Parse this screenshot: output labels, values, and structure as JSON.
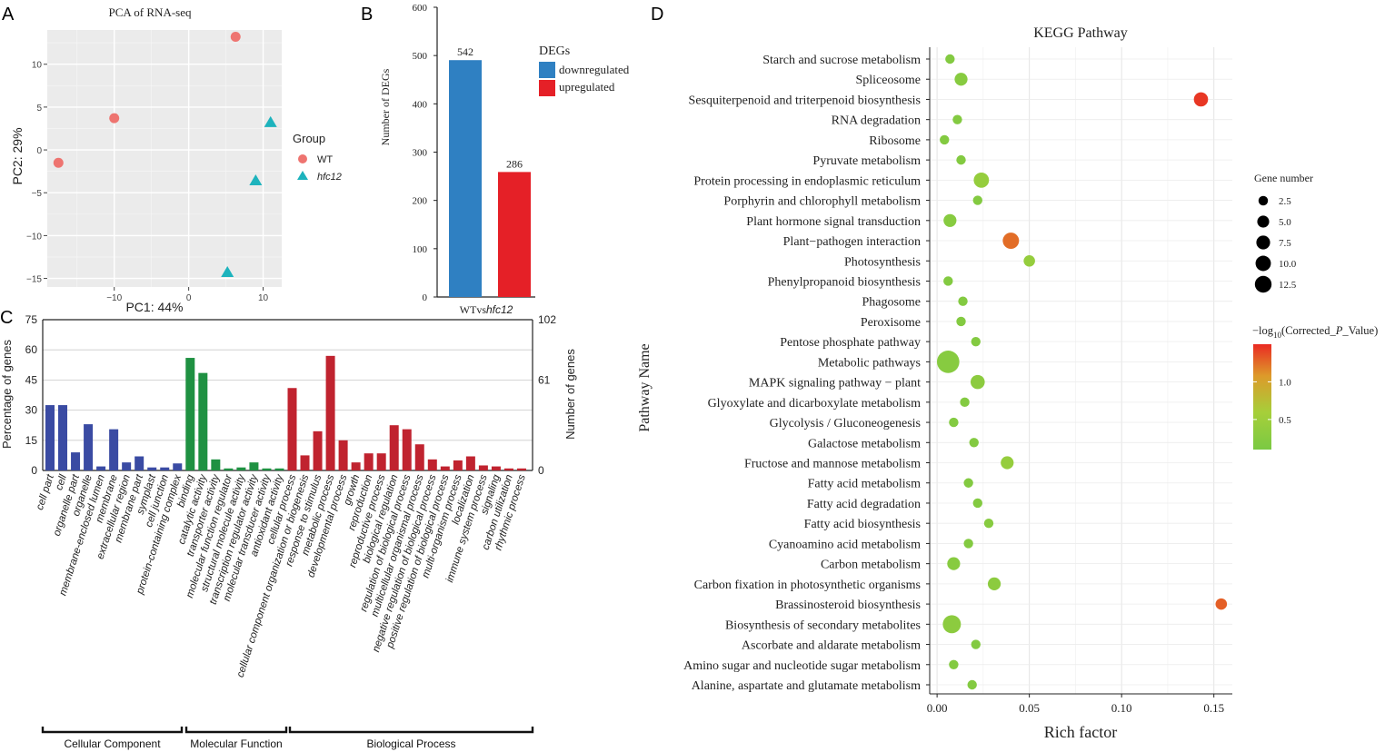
{
  "panels": {
    "a": "A",
    "b": "B",
    "c": "C",
    "d": "D"
  },
  "chart_data": [
    {
      "id": "pca",
      "type": "scatter",
      "title": "PCA of RNA-seq",
      "xlabel": "PC1: 44%",
      "ylabel": "PC2: 29%",
      "xlim": [
        -19,
        12.5
      ],
      "ylim": [
        -16,
        14
      ],
      "xticks": [
        -10,
        0,
        10
      ],
      "yticks": [
        10,
        5,
        0,
        -5,
        -10,
        -15
      ],
      "xtick_labels": [
        "−10",
        "0",
        "10"
      ],
      "ytick_labels": [
        "10",
        "5",
        "0",
        "−5",
        "−10",
        "−15"
      ],
      "legend_title": "Group",
      "legend": [
        {
          "label": "WT",
          "color": "#ee7470",
          "shape": "circle"
        },
        {
          "label": "hfc12",
          "color": "#1db3bd",
          "shape": "triangle"
        }
      ],
      "series": [
        {
          "name": "WT",
          "points": [
            [
              6.3,
              13.2
            ],
            [
              -10,
              3.7
            ],
            [
              -17.5,
              -1.5
            ]
          ]
        },
        {
          "name": "hfc12",
          "points": [
            [
              11,
              3.2
            ],
            [
              9,
              -3.6
            ],
            [
              5.2,
              -14.3
            ]
          ]
        }
      ]
    },
    {
      "id": "degs",
      "type": "bar",
      "ylabel": "Number of DEGs",
      "ylim": [
        0,
        600
      ],
      "yticks": [
        0,
        100,
        200,
        300,
        400,
        500,
        600
      ],
      "ytick_labels": [
        "0",
        "100",
        "200",
        "300",
        "400",
        "500",
        "600"
      ],
      "categories": [
        "WTvs",
        "hfc12"
      ],
      "xlabel_prefix": "WTvs",
      "xlabel_italic": "hfc12",
      "legend_title": "DEGs",
      "series": [
        {
          "name": "downregulated",
          "value": 542,
          "label": "542",
          "color": "#2f80c2"
        },
        {
          "name": "upregulated",
          "value": 286,
          "label": "286",
          "color": "#e52027"
        }
      ]
    },
    {
      "id": "go",
      "type": "bar",
      "ylabel_left": "Percentage of genes",
      "ylabel_right": "Number of genes",
      "ylim": [
        0,
        75
      ],
      "yticks_left": [
        0,
        15,
        30,
        45,
        60,
        75
      ],
      "ytick_labels_left": [
        "0",
        "15",
        "30",
        "45",
        "60",
        "75"
      ],
      "ytick_labels_right": [
        "102",
        "61",
        "0"
      ],
      "groups": [
        {
          "name": "Cellular Component",
          "color": "#3a4ba3",
          "start": 0,
          "end": 11
        },
        {
          "name": "Molecular Function",
          "color": "#1f9142",
          "start": 12,
          "end": 19
        },
        {
          "name": "Biological Process",
          "color": "#c0232f",
          "start": 20,
          "end": 39
        }
      ],
      "categories": [
        "cell part",
        "cell",
        "organelle part",
        "organelle",
        "membrane-enclosed lumen",
        "membrane",
        "extracellular region",
        "membrane part",
        "symplast",
        "cell junction",
        "protein-containing complex",
        "binding",
        "catalytic activity",
        "transporter activity",
        "molecular function regulator",
        "structural molecule activity",
        "transcription regulator activity",
        "molecular transducer activity",
        "antioxidant activity",
        "cellular process",
        "cellular component organization or biogenesis",
        "response to stimulus",
        "metabolic process",
        "developmental process",
        "growth",
        "reproduction",
        "reproductive process",
        "biological regulation",
        "regulation of biological process",
        "multicellular organismal process",
        "negative regulation of biological process",
        "positive regulation of biological process",
        "multi-organism process",
        "localization",
        "immune system process",
        "signaling",
        "carbon utilization",
        "rhythmic process"
      ],
      "values": [
        32.5,
        32.5,
        9,
        23,
        2,
        20.5,
        4,
        7,
        1.5,
        1.5,
        3.5,
        56,
        48.5,
        5.5,
        1,
        1.5,
        4,
        1,
        1,
        41,
        7.5,
        19.5,
        57,
        15,
        4,
        8.5,
        8.5,
        22.5,
        20.5,
        13,
        5.5,
        2,
        5,
        7,
        2.5,
        2,
        1,
        1
      ],
      "colors_by_group": [
        "cc",
        "cc",
        "cc",
        "cc",
        "cc",
        "cc",
        "cc",
        "cc",
        "cc",
        "cc",
        "cc",
        "mf",
        "mf",
        "mf",
        "mf",
        "mf",
        "mf",
        "mf",
        "mf",
        "bp",
        "bp",
        "bp",
        "bp",
        "bp",
        "bp",
        "bp",
        "bp",
        "bp",
        "bp",
        "bp",
        "bp",
        "bp",
        "bp",
        "bp",
        "bp",
        "bp",
        "bp",
        "bp"
      ]
    },
    {
      "id": "kegg",
      "type": "scatter",
      "title": "KEGG Pathway",
      "xlabel": "Rich factor",
      "ylabel": "Pathway Name",
      "xlim": [
        -0.004,
        0.16
      ],
      "xticks": [
        0,
        0.05,
        0.1,
        0.15
      ],
      "xtick_labels": [
        "0.00",
        "0.05",
        "0.10",
        "0.15"
      ],
      "size_legend_title": "Gene number",
      "size_legend": [
        {
          "label": "2.5",
          "value": 2.5
        },
        {
          "label": "5.0",
          "value": 5.0
        },
        {
          "label": "7.5",
          "value": 7.5
        },
        {
          "label": "10.0",
          "value": 10.0
        },
        {
          "label": "12.5",
          "value": 12.5
        }
      ],
      "color_legend_title_prefix": "−log",
      "color_legend_title_sub": "10",
      "color_legend_title_suffix": "(Corrected_",
      "color_legend_title_p": "P",
      "color_legend_title_end": "_Value)",
      "color_legend_ticks": [
        {
          "label": "1.0",
          "value": 1.0
        },
        {
          "label": "0.5",
          "value": 0.5
        }
      ],
      "color_range": [
        0.1,
        1.5
      ],
      "pathways": [
        {
          "name": "Starch and sucrose metabolism",
          "rich": 0.007,
          "genes": 1,
          "logp": 0.2
        },
        {
          "name": "Spliceosome",
          "rich": 0.013,
          "genes": 3,
          "logp": 0.25
        },
        {
          "name": "Sesquiterpenoid and triterpenoid biosynthesis",
          "rich": 0.143,
          "genes": 4,
          "logp": 1.45
        },
        {
          "name": "RNA degradation",
          "rich": 0.011,
          "genes": 1,
          "logp": 0.2
        },
        {
          "name": "Ribosome",
          "rich": 0.004,
          "genes": 1,
          "logp": 0.2
        },
        {
          "name": "Pyruvate metabolism",
          "rich": 0.013,
          "genes": 1,
          "logp": 0.2
        },
        {
          "name": "Protein processing in endoplasmic reticulum",
          "rich": 0.024,
          "genes": 5,
          "logp": 0.4
        },
        {
          "name": "Porphyrin and chlorophyll metabolism",
          "rich": 0.022,
          "genes": 1,
          "logp": 0.2
        },
        {
          "name": "Plant hormone signal transduction",
          "rich": 0.007,
          "genes": 3,
          "logp": 0.25
        },
        {
          "name": "Plant−pathogen interaction",
          "rich": 0.04,
          "genes": 6,
          "logp": 1.25
        },
        {
          "name": "Photosynthesis",
          "rich": 0.05,
          "genes": 2,
          "logp": 0.4
        },
        {
          "name": "Phenylpropanoid biosynthesis",
          "rich": 0.006,
          "genes": 1,
          "logp": 0.2
        },
        {
          "name": "Phagosome",
          "rich": 0.014,
          "genes": 1,
          "logp": 0.2
        },
        {
          "name": "Peroxisome",
          "rich": 0.013,
          "genes": 1,
          "logp": 0.2
        },
        {
          "name": "Pentose phosphate pathway",
          "rich": 0.021,
          "genes": 1,
          "logp": 0.2
        },
        {
          "name": "Metabolic pathways",
          "rich": 0.006,
          "genes": 14,
          "logp": 0.25
        },
        {
          "name": "MAPK signaling pathway − plant",
          "rich": 0.022,
          "genes": 4,
          "logp": 0.3
        },
        {
          "name": "Glyoxylate and dicarboxylate metabolism",
          "rich": 0.015,
          "genes": 1,
          "logp": 0.2
        },
        {
          "name": "Glycolysis / Gluconeogenesis",
          "rich": 0.009,
          "genes": 1,
          "logp": 0.2
        },
        {
          "name": "Galactose metabolism",
          "rich": 0.02,
          "genes": 1,
          "logp": 0.2
        },
        {
          "name": "Fructose and mannose metabolism",
          "rich": 0.038,
          "genes": 3,
          "logp": 0.4
        },
        {
          "name": "Fatty acid metabolism",
          "rich": 0.017,
          "genes": 1,
          "logp": 0.2
        },
        {
          "name": "Fatty acid degradation",
          "rich": 0.022,
          "genes": 1,
          "logp": 0.2
        },
        {
          "name": "Fatty acid biosynthesis",
          "rich": 0.028,
          "genes": 1,
          "logp": 0.25
        },
        {
          "name": "Cyanoamino acid metabolism",
          "rich": 0.017,
          "genes": 1,
          "logp": 0.2
        },
        {
          "name": "Carbon metabolism",
          "rich": 0.009,
          "genes": 3,
          "logp": 0.25
        },
        {
          "name": "Carbon fixation in photosynthetic organisms",
          "rich": 0.031,
          "genes": 3,
          "logp": 0.3
        },
        {
          "name": "Brassinosteroid biosynthesis",
          "rich": 0.154,
          "genes": 2,
          "logp": 1.3
        },
        {
          "name": "Biosynthesis of secondary metabolites",
          "rich": 0.008,
          "genes": 8,
          "logp": 0.3
        },
        {
          "name": "Ascorbate and aldarate metabolism",
          "rich": 0.021,
          "genes": 1,
          "logp": 0.2
        },
        {
          "name": "Amino sugar and nucleotide sugar metabolism",
          "rich": 0.009,
          "genes": 1,
          "logp": 0.2
        },
        {
          "name": "Alanine, aspartate and glutamate metabolism",
          "rich": 0.019,
          "genes": 1,
          "logp": 0.2
        }
      ]
    }
  ]
}
